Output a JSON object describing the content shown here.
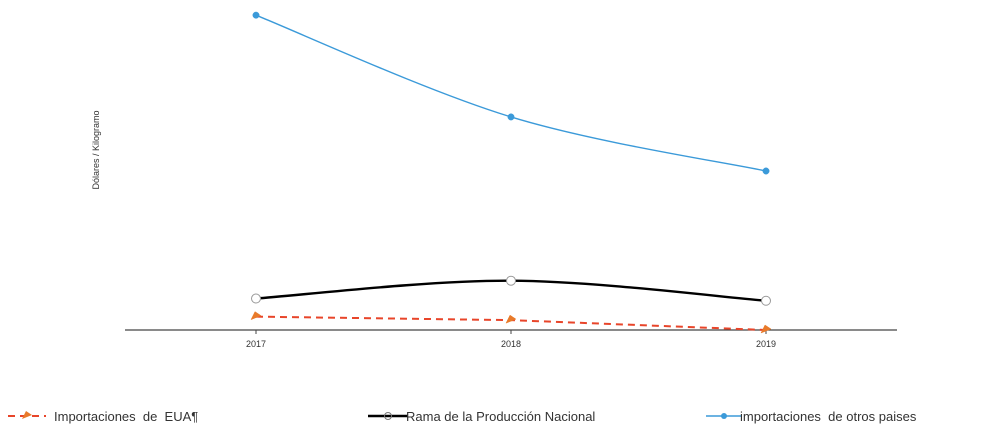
{
  "chart_data": {
    "type": "line",
    "title": "",
    "xlabel": "",
    "ylabel": "Dólares / Kilogramo",
    "categories": [
      "2017",
      "2018",
      "2019"
    ],
    "ylim": [
      0,
      1
    ],
    "grid": false,
    "legend_position": "bottom",
    "series": [
      {
        "name": "Importaciones  de  EUA¶",
        "values": [
          0.042,
          0.031,
          0.0
        ],
        "color": "#e8452a",
        "line_style": "dashed",
        "marker": "triangle"
      },
      {
        "name": "Rama de la Producción Nacional",
        "values": [
          0.099,
          0.155,
          0.092
        ],
        "color": "#000000",
        "line_style": "solid",
        "marker": "circle-open"
      },
      {
        "name": "importaciones  de otros paises",
        "values": [
          0.99,
          0.67,
          0.5
        ],
        "color": "#3b9ad9",
        "line_style": "solid",
        "marker": "circle"
      }
    ]
  }
}
